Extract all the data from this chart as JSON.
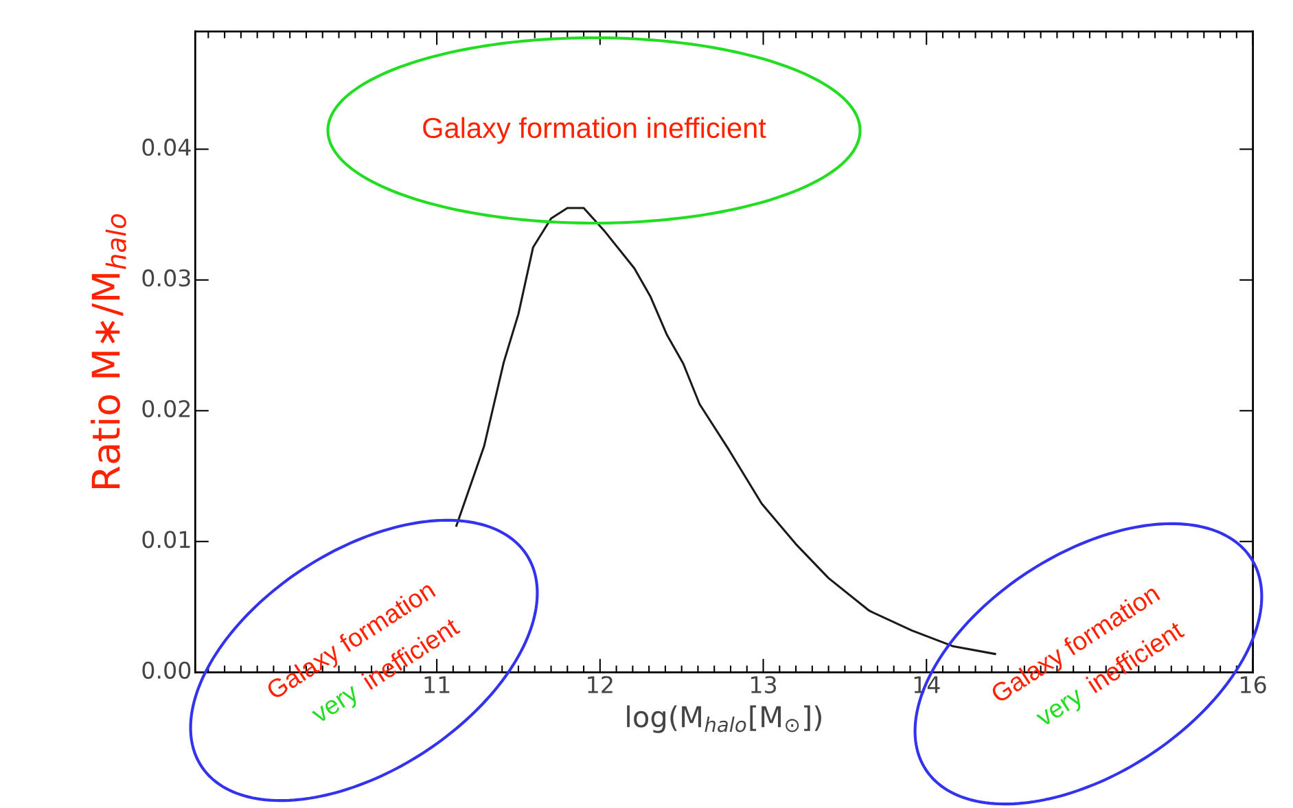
{
  "chart_data": {
    "type": "line",
    "xlabel": "log(M$_{halo}$[M$_{⊙}$])",
    "ylabel": "Ratio M∗/M$_{halo}$",
    "x": [
      11.12,
      11.29,
      11.41,
      11.5,
      11.59,
      11.7,
      11.8,
      11.9,
      12.03,
      12.21,
      12.31,
      12.41,
      12.51,
      12.61,
      12.79,
      12.99,
      13.2,
      13.4,
      13.65,
      13.91,
      14.16,
      14.42
    ],
    "series": [
      {
        "color": "#1a1a1a",
        "values": [
          0.0112,
          0.0173,
          0.0237,
          0.0274,
          0.0325,
          0.0347,
          0.0355,
          0.0355,
          0.0337,
          0.0309,
          0.0287,
          0.0258,
          0.0236,
          0.0205,
          0.017,
          0.0129,
          0.0098,
          0.0072,
          0.0047,
          0.0032,
          0.002,
          0.0014
        ]
      }
    ],
    "xlim": [
      9.52,
      16
    ],
    "ylim": [
      0,
      0.049
    ],
    "xticks": [
      11,
      12,
      13,
      14,
      16
    ],
    "yticks": [
      {
        "value": 0,
        "label": "0.00"
      },
      {
        "value": 0.01,
        "label": "0.01"
      },
      {
        "value": 0.02,
        "label": "0.02"
      },
      {
        "value": 0.03,
        "label": "0.03"
      },
      {
        "value": 0.04,
        "label": "0.04"
      }
    ],
    "grid": false,
    "legend": false,
    "marker": "none",
    "line_style": "solid",
    "annotations": [
      "Galaxy formation inefficient",
      "Galaxy formation",
      "very",
      "inefficient",
      "Galaxy formation",
      "very",
      "inefficient"
    ]
  }
}
